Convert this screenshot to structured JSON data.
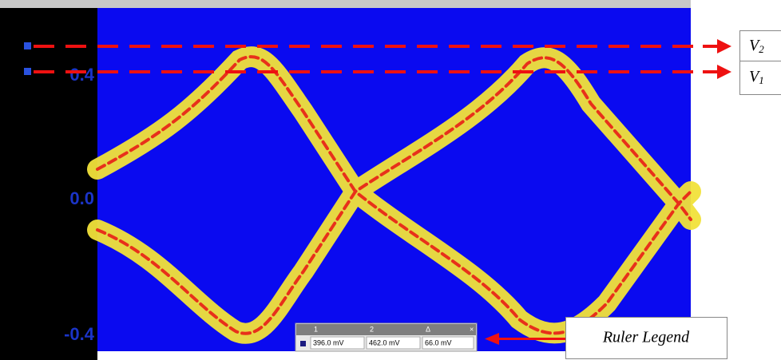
{
  "axis_labels": [
    "0.4",
    "0.0",
    "-0.4"
  ],
  "markers": [
    {
      "letter": "V",
      "subscript": "2"
    },
    {
      "letter": "V",
      "subscript": "1"
    }
  ],
  "ruler": {
    "headers": [
      "1",
      "2",
      "Δ"
    ],
    "values": [
      "396.0 mV",
      "462.0 mV",
      "66.0 mV"
    ]
  },
  "callout": "Ruler Legend"
}
